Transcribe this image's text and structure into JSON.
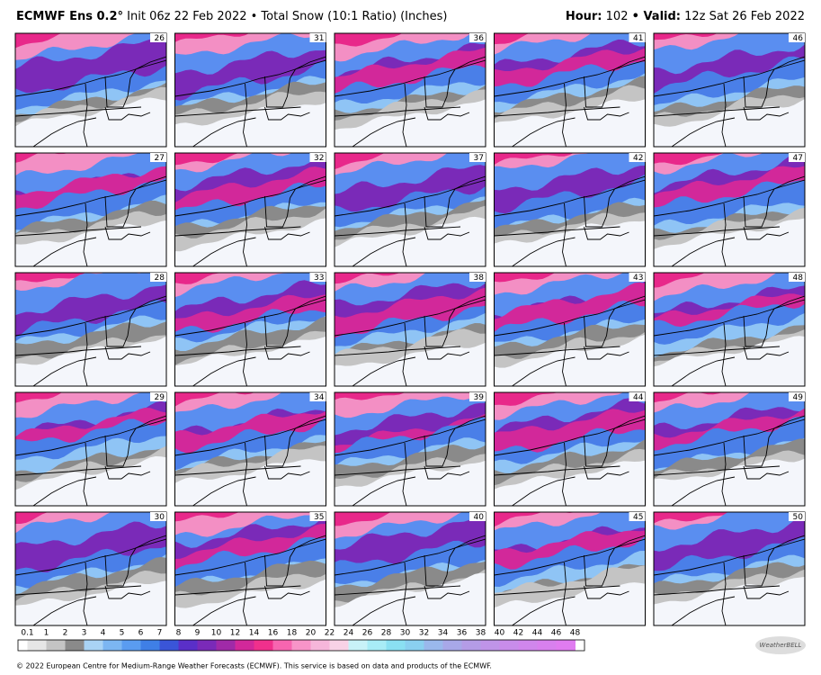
{
  "header": {
    "model": "ECMWF Ens 0.2°",
    "subtitle": "Init 06z 22 Feb 2022 • Total Snow (10:1 Ratio) (Inches)",
    "hour_label": "Hour:",
    "hour": "102",
    "valid_label": "• Valid:",
    "valid": "12z Sat 26 Feb 2022"
  },
  "panels": [
    "26",
    "27",
    "28",
    "29",
    "30",
    "31",
    "32",
    "33",
    "34",
    "35",
    "36",
    "37",
    "38",
    "39",
    "40",
    "41",
    "42",
    "43",
    "44",
    "45",
    "46",
    "47",
    "48",
    "49",
    "50"
  ],
  "legend": {
    "labels": [
      "0.1",
      "1",
      "2",
      "3",
      "4",
      "5",
      "6",
      "7",
      "8",
      "9",
      "10",
      "12",
      "14",
      "16",
      "18",
      "20",
      "22",
      "24",
      "26",
      "28",
      "30",
      "32",
      "34",
      "36",
      "38",
      "40",
      "42",
      "44",
      "46",
      "48"
    ],
    "colors": [
      "#e6e6e6",
      "#c4c4c4",
      "#8a8a8a",
      "#a9d3f5",
      "#7cb6f2",
      "#5a9cf0",
      "#3f7fe6",
      "#3a55d8",
      "#5a2fc8",
      "#7a2ab8",
      "#a02aa8",
      "#d2289a",
      "#f0308c",
      "#f765b0",
      "#f894c8",
      "#f6b6da",
      "#f8d2e6",
      "#c8f2f8",
      "#a8ecf6",
      "#8ae0f2",
      "#8ad0f0",
      "#9ab8ec",
      "#a8a8e8",
      "#b49ce6",
      "#bf94e8",
      "#c88cea",
      "#d086ec",
      "#d880ee",
      "#e07cf0"
    ]
  },
  "footer": "© 2022 European Centre for Medium-Range Weather Forecasts (ECMWF). This service is based on data and products of the ECMWF.",
  "logo": "WeatherBELL"
}
